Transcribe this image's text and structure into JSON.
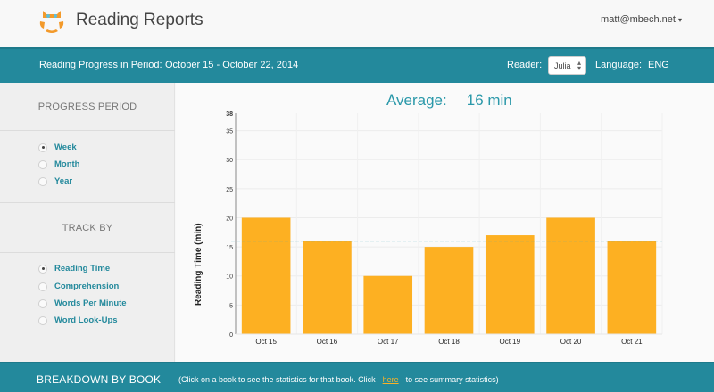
{
  "header": {
    "app_title": "Reading Reports",
    "logo_icon": "owl-logo-icon",
    "user_email": "matt@mbech.net",
    "user_caret": "▾"
  },
  "period_bar": {
    "label": "Reading Progress in Period:",
    "range": "October 15 - October 22, 2014",
    "reader_label": "Reader:",
    "reader_selected": "Julia",
    "reader_arrows": "⬍",
    "language_label": "Language:",
    "language_value": "ENG"
  },
  "sidebar": {
    "progress_period": {
      "heading": "PROGRESS PERIOD",
      "options": [
        {
          "label": "Week",
          "selected": true
        },
        {
          "label": "Month",
          "selected": false
        },
        {
          "label": "Year",
          "selected": false
        }
      ]
    },
    "track_by": {
      "heading": "TRACK BY",
      "options": [
        {
          "label": "Reading Time",
          "selected": true
        },
        {
          "label": "Comprehension",
          "selected": false
        },
        {
          "label": "Words Per Minute",
          "selected": false
        },
        {
          "label": "Word Look-Ups",
          "selected": false
        }
      ]
    }
  },
  "main": {
    "average_label": "Average:",
    "average_value": "16 min"
  },
  "colors": {
    "teal": "#23899c",
    "bar": "#fdb022",
    "avg_line": "#4fa8b8",
    "link": "#f7b228"
  },
  "chart_data": {
    "type": "bar",
    "title": "Average: 16 min",
    "xlabel": "",
    "ylabel": "Reading Time (min)",
    "categories": [
      "Oct 15",
      "Oct 16",
      "Oct 17",
      "Oct 18",
      "Oct 19",
      "Oct 20",
      "Oct 21"
    ],
    "values": [
      20,
      16,
      10,
      15,
      17,
      20,
      16
    ],
    "ylim": [
      0,
      38
    ],
    "yticks": [
      0,
      5,
      10,
      15,
      20,
      25,
      30,
      35,
      38
    ],
    "reference_line": {
      "value": 16,
      "style": "dashed",
      "label": "Average"
    },
    "grid": true,
    "legend": "none"
  },
  "footer": {
    "title": "BREAKDOWN BY BOOK",
    "hint_before": "(Click on a book to see the statistics for that book. Click",
    "hint_link": "here",
    "hint_after": "to see summary statistics)"
  }
}
